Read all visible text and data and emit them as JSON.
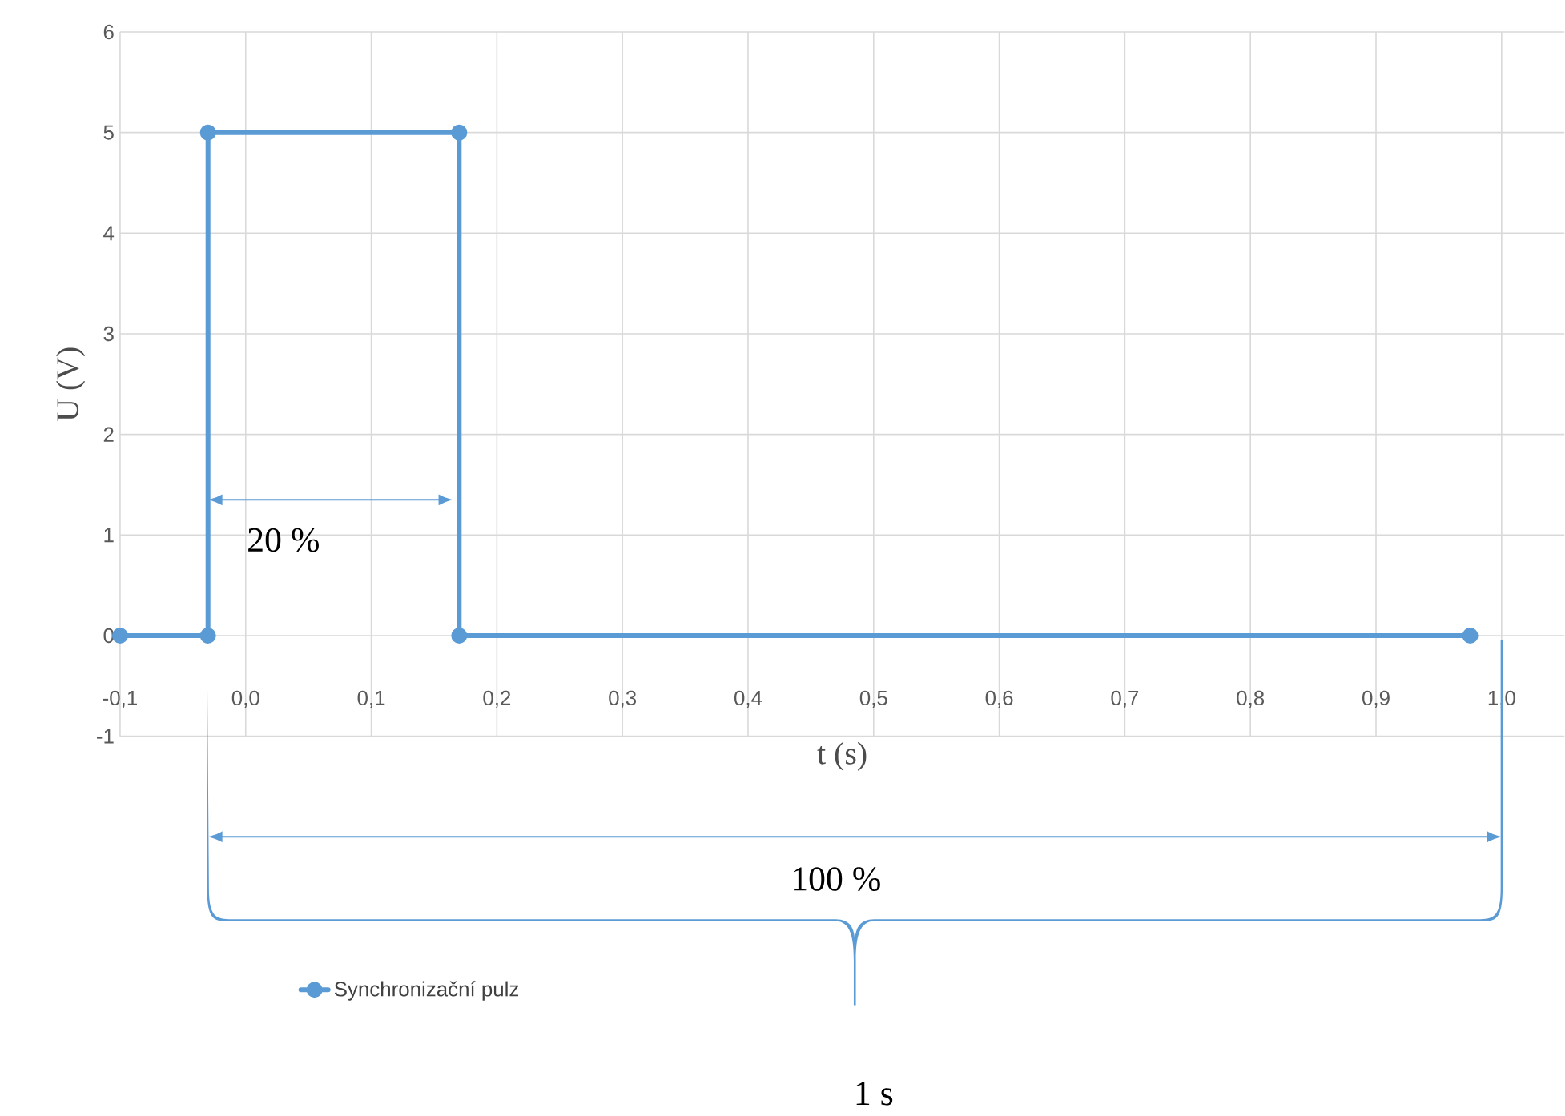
{
  "chart_data": {
    "type": "line",
    "xlabel": "t (s)",
    "ylabel": "U (V)",
    "x": [
      -0.1,
      -0.03,
      -0.03,
      0.17,
      0.17,
      0.975
    ],
    "series": [
      {
        "name": "Synchronizační pulz",
        "color": "#5b9bd5",
        "values": [
          0,
          0,
          5,
          5,
          0,
          0
        ]
      }
    ],
    "xlim": [
      -0.1,
      1.05
    ],
    "ylim": [
      -1,
      6
    ],
    "xticks": [
      {
        "value": -0.1,
        "label": "-0,1"
      },
      {
        "value": 0,
        "label": "0,0"
      },
      {
        "value": 0.1,
        "label": "0,1"
      },
      {
        "value": 0.2,
        "label": "0,2"
      },
      {
        "value": 0.3,
        "label": "0,3"
      },
      {
        "value": 0.4,
        "label": "0,4"
      },
      {
        "value": 0.5,
        "label": "0,5"
      },
      {
        "value": 0.6,
        "label": "0,6"
      },
      {
        "value": 0.7,
        "label": "0,7"
      },
      {
        "value": 0.8,
        "label": "0,8"
      },
      {
        "value": 0.9,
        "label": "0,9"
      },
      {
        "value": 1.0,
        "label": "1,0"
      }
    ],
    "yticks": [
      -1,
      0,
      1,
      2,
      3,
      4,
      5,
      6
    ],
    "grid": true,
    "legend": "bottom left",
    "marker": "circle",
    "line_style": "solid",
    "annotations": [
      "20 %",
      "100 %",
      "1 s"
    ]
  }
}
